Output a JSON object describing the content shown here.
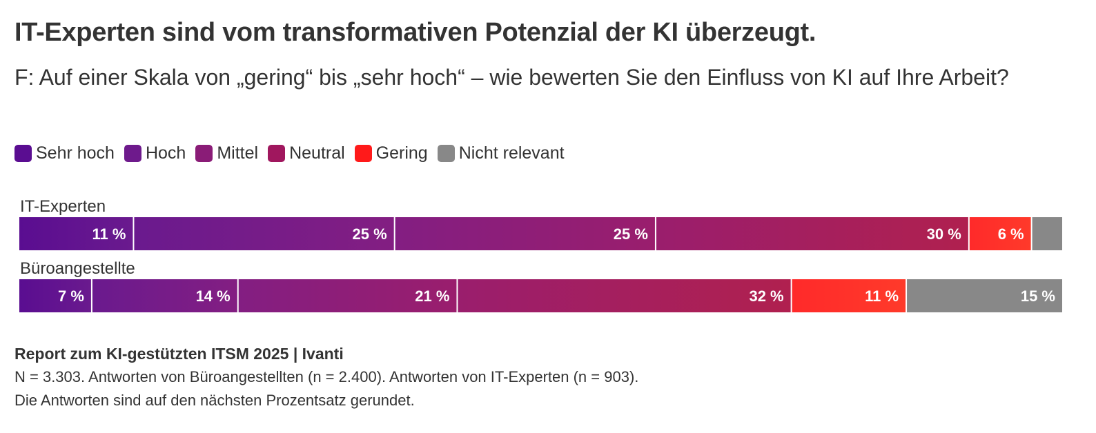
{
  "title": "IT-Experten sind vom transformativen Potenzial der KI überzeugt.",
  "subtitle": "F: Auf einer Skala von „gering“ bis „sehr hoch“ – wie bewerten Sie den Einfluss von KI auf Ihre Arbeit?",
  "legend": [
    {
      "label": "Sehr hoch",
      "color": "#5a0d91",
      "icon": "square-swatch"
    },
    {
      "label": "Hoch",
      "color": "#6e1a8c",
      "icon": "square-swatch"
    },
    {
      "label": "Mittel",
      "color": "#8a1c77",
      "icon": "square-swatch"
    },
    {
      "label": "Neutral",
      "color": "#a0175e",
      "icon": "square-swatch"
    },
    {
      "label": "Gering",
      "color": "#ff1a1a",
      "icon": "square-swatch"
    },
    {
      "label": "Nicht relevant",
      "color": "#888888",
      "icon": "square-swatch"
    }
  ],
  "chart_data": {
    "type": "bar",
    "orientation": "horizontal-stacked-100",
    "categories": [
      "IT-Experten",
      "Büroangestellte"
    ],
    "series": [
      {
        "name": "Sehr hoch",
        "values": [
          11,
          7
        ],
        "labels": [
          "11 %",
          "7 %"
        ]
      },
      {
        "name": "Hoch",
        "values": [
          25,
          14
        ],
        "labels": [
          "25 %",
          "14 %"
        ]
      },
      {
        "name": "Mittel",
        "values": [
          25,
          21
        ],
        "labels": [
          "25 %",
          "21 %"
        ]
      },
      {
        "name": "Neutral",
        "values": [
          30,
          32
        ],
        "labels": [
          "30 %",
          "32 %"
        ]
      },
      {
        "name": "Gering",
        "values": [
          6,
          11
        ],
        "labels": [
          "6 %",
          "11 %"
        ]
      },
      {
        "name": "Nicht relevant",
        "values": [
          3,
          15
        ],
        "labels": [
          "",
          "15 %"
        ]
      }
    ],
    "colors": {
      "Sehr hoch": [
        "#5a0d91",
        "#6a1a8e"
      ],
      "Hoch": [
        "#6a1a8e",
        "#831e82"
      ],
      "Mittel": [
        "#831e82",
        "#9a1e6d"
      ],
      "Neutral": [
        "#9a1e6d",
        "#b0204f"
      ],
      "Gering": [
        "#ff2a2a",
        "#ff3a2a"
      ],
      "Nicht relevant": [
        "#888888",
        "#888888"
      ]
    },
    "xlim": [
      0,
      100
    ],
    "title": "IT-Experten sind vom transformativen Potenzial der KI überzeugt.",
    "legend_position": "top-left"
  },
  "footer": {
    "source": "Report zum KI-gestützten ITSM 2025 | Ivanti",
    "note1": "N = 3.303. Antworten von Büroangestellten (n = 2.400). Antworten von IT-Experten (n = 903).",
    "note2": "Die Antworten sind auf den nächsten Prozentsatz gerundet."
  }
}
